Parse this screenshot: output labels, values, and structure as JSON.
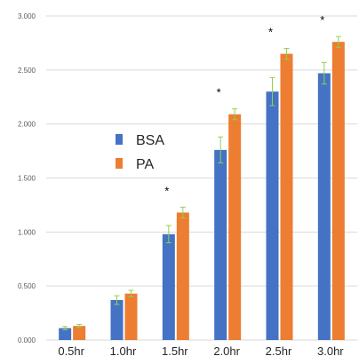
{
  "chart_data": {
    "type": "bar",
    "title": "",
    "xlabel": "",
    "ylabel": "",
    "ylim": [
      0,
      3.0
    ],
    "y_ticks": [
      "0.000",
      "0.500",
      "1.000",
      "1.500",
      "2.000",
      "2.500",
      "3.000"
    ],
    "y_tick_values": [
      0,
      0.5,
      1.0,
      1.5,
      2.0,
      2.5,
      3.0
    ],
    "grid": "horizontal",
    "legend_position": "center-left",
    "categories": [
      "0.5hr",
      "1.0hr",
      "1.5hr",
      "2.0hr",
      "2.5hr",
      "3.0hr"
    ],
    "series": [
      {
        "name": "BSA",
        "color": "#4472c4",
        "values": [
          0.11,
          0.37,
          0.98,
          1.76,
          2.3,
          2.47
        ],
        "errors": [
          0.015,
          0.04,
          0.08,
          0.12,
          0.13,
          0.1
        ]
      },
      {
        "name": "PA",
        "color": "#ed7d31",
        "values": [
          0.13,
          0.43,
          1.18,
          2.09,
          2.65,
          2.76
        ],
        "errors": [
          0.015,
          0.03,
          0.05,
          0.05,
          0.05,
          0.05
        ]
      }
    ],
    "error_bar_color": "#92d050",
    "annotations": [
      {
        "category": "1.5hr",
        "text": "*"
      },
      {
        "category": "2.0hr",
        "text": "*"
      },
      {
        "category": "2.5hr",
        "text": "*"
      },
      {
        "category": "3.0hr",
        "text": "*"
      }
    ]
  }
}
